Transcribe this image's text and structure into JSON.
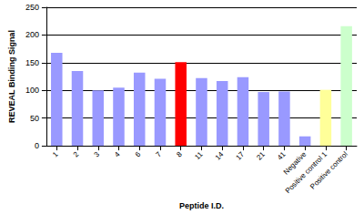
{
  "chart_data": {
    "type": "bar",
    "categories": [
      "1",
      "2",
      "3",
      "4",
      "6",
      "7",
      "8",
      "11",
      "14",
      "17",
      "21",
      "41",
      "Negative",
      "Positive control 1",
      "Positive control"
    ],
    "values": [
      168,
      135,
      100,
      105,
      132,
      121,
      151,
      122,
      117,
      124,
      97,
      98,
      17,
      101,
      216
    ],
    "colors": [
      "#9999ff",
      "#9999ff",
      "#9999ff",
      "#9999ff",
      "#9999ff",
      "#9999ff",
      "#ff0000",
      "#9999ff",
      "#9999ff",
      "#9999ff",
      "#9999ff",
      "#9999ff",
      "#9999ff",
      "#ffff99",
      "#ccffcc"
    ],
    "x_label": "Peptide I.D.",
    "y_label": "REVEAL Binding Signal",
    "ylim": [
      0,
      250
    ],
    "yticks": [
      0,
      50,
      100,
      150,
      200,
      250
    ],
    "grid": true
  }
}
